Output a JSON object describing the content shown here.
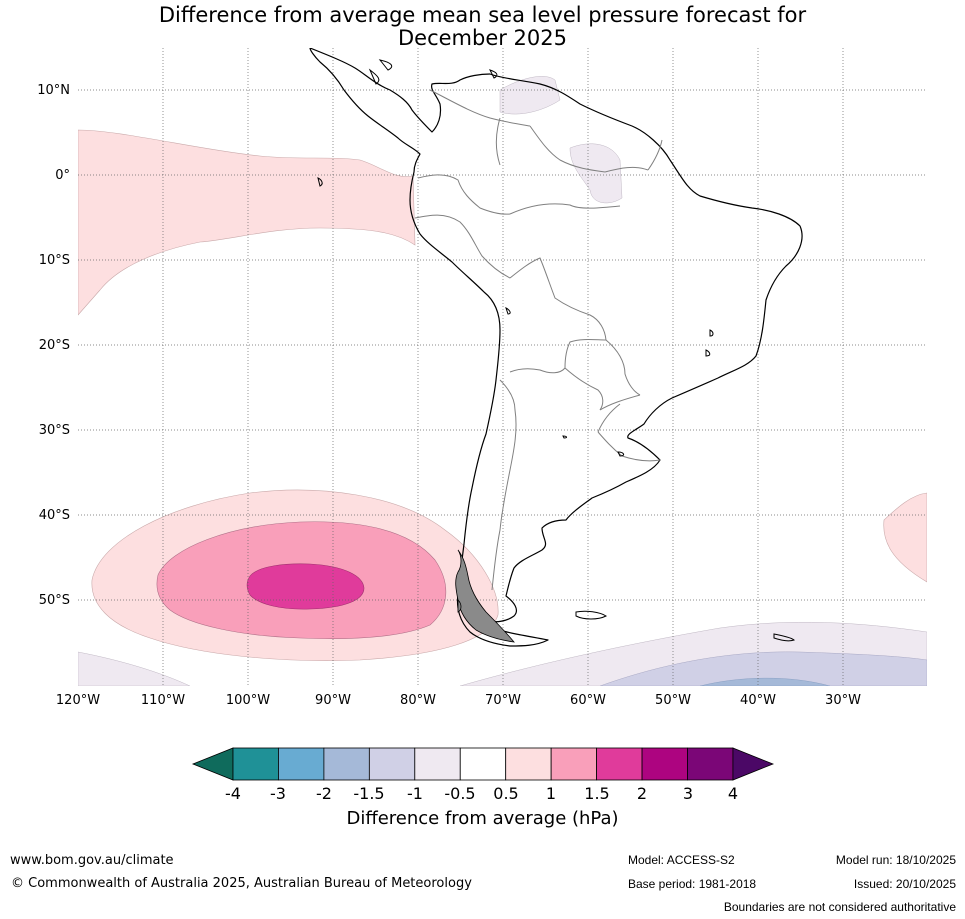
{
  "title_line1": "Difference from average mean sea level pressure forecast for",
  "title_line2": "December 2025",
  "lat_labels": [
    "10°N",
    "0°",
    "10°S",
    "20°S",
    "30°S",
    "40°S",
    "50°S"
  ],
  "lon_labels": [
    "120°W",
    "110°W",
    "100°W",
    "90°W",
    "80°W",
    "70°W",
    "60°W",
    "50°W",
    "40°W",
    "30°W"
  ],
  "colorbar": {
    "label": "Difference from average (hPa)",
    "ticks": [
      "-4",
      "-3",
      "-2",
      "-1.5",
      "-1",
      "-0.5",
      "0.5",
      "1",
      "1.5",
      "2",
      "3",
      "4"
    ],
    "colors": [
      "#0f6b5c",
      "#1f9197",
      "#68abd2",
      "#a5b9d8",
      "#d0d0e6",
      "#efe9f1",
      "#ffffff",
      "#fddfe0",
      "#f99fba",
      "#e03b9b",
      "#ad0480",
      "#7b0677",
      "#4b0866"
    ]
  },
  "footer": {
    "website": "www.bom.gov.au/climate",
    "copyright": "© Commonwealth of Australia 2025, Australian Bureau of Meteorology",
    "model": "Model: ACCESS-S2",
    "base_period": "Base period: 1981-2018",
    "model_run": "Model run: 18/10/2025",
    "issued": "Issued: 20/10/2025",
    "disclaimer": "Boundaries are not considered authoritative"
  }
}
